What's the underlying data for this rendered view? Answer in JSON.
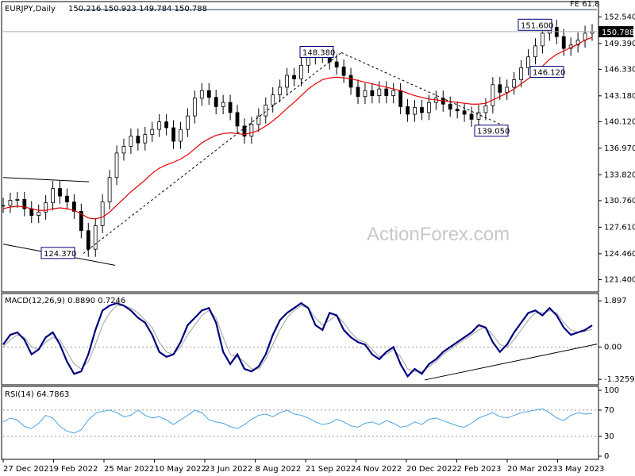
{
  "chart_data": [
    {
      "type": "candlestick",
      "panel": "price",
      "title": "EURJPY,Daily",
      "ohlc_readout": "150.216 150.923 149.784 150.788",
      "yticks": [
        "152.540",
        "149.390",
        "146.330",
        "143.180",
        "140.120",
        "136.970",
        "133.820",
        "130.760",
        "127.610",
        "124.460",
        "121.400"
      ],
      "ylim": [
        120.5,
        153.6
      ],
      "xticks": [
        "27 Dec 2021",
        "9 Feb 2022",
        "25 Mar 2022",
        "10 May 2022",
        "23 Jun 2022",
        "8 Aug 2022",
        "21 Sep 2022",
        "4 Nov 2022",
        "20 Dec 2022",
        "2 Feb 2023",
        "20 Mar 2023",
        "3 May 2023"
      ],
      "last_price": "150.788",
      "fib_label": "FE 61.8",
      "fib_level": 153.4,
      "annotations": [
        {
          "text": "124.370",
          "value": 124.37
        },
        {
          "text": "148.380",
          "value": 148.38
        },
        {
          "text": "139.050",
          "value": 139.05
        },
        {
          "text": "146.120",
          "value": 146.12
        },
        {
          "text": "151.600",
          "value": 151.6
        }
      ],
      "series": [
        {
          "role": "price",
          "values": [
            130.2,
            130.8,
            130.9,
            129.8,
            129.0,
            129.4,
            130.5,
            132.2,
            131.3,
            130.6,
            129.5,
            127.2,
            125.0,
            127.8,
            130.6,
            133.5,
            136.4,
            137.2,
            138.4,
            137.6,
            138.6,
            139.2,
            140.1,
            139.4,
            137.8,
            139.2,
            140.8,
            142.9,
            143.8,
            143.0,
            141.9,
            142.4,
            141.2,
            139.6,
            138.4,
            139.8,
            140.8,
            142.1,
            143.3,
            144.2,
            145.6,
            145.2,
            146.8,
            147.8,
            148.1,
            148.0,
            147.2,
            146.6,
            145.6,
            144.2,
            143.1,
            143.8,
            143.2,
            144.0,
            143.2,
            143.8,
            141.9,
            141.0,
            141.8,
            141.2,
            142.4,
            142.9,
            142.2,
            141.6,
            141.4,
            141.0,
            140.4,
            141.2,
            142.0,
            144.5,
            143.6,
            144.2,
            145.1,
            146.5,
            147.8,
            149.1,
            150.6,
            151.3,
            150.2,
            148.8,
            149.2,
            149.8,
            150.6,
            150.8
          ]
        },
        {
          "role": "sma",
          "values": [
            129.8,
            130.0,
            130.1,
            130.0,
            129.8,
            129.6,
            129.6,
            129.8,
            129.9,
            129.8,
            129.6,
            129.2,
            128.7,
            128.6,
            128.8,
            129.4,
            130.2,
            131.0,
            131.8,
            132.5,
            133.2,
            134.0,
            134.6,
            135.0,
            135.3,
            135.7,
            136.2,
            136.9,
            137.6,
            138.1,
            138.5,
            138.7,
            138.8,
            138.7,
            138.6,
            138.8,
            139.1,
            139.6,
            140.2,
            140.9,
            141.7,
            142.4,
            143.2,
            144.0,
            144.6,
            145.1,
            145.3,
            145.4,
            145.3,
            145.2,
            145.0,
            144.8,
            144.6,
            144.4,
            144.2,
            144.0,
            143.8,
            143.5,
            143.2,
            143.0,
            142.8,
            142.7,
            142.6,
            142.5,
            142.4,
            142.3,
            142.2,
            142.2,
            142.3,
            142.7,
            143.1,
            143.5,
            144.0,
            144.6,
            145.2,
            145.9,
            146.7,
            147.5,
            148.1,
            148.5,
            148.9,
            149.3,
            149.8,
            150.1
          ]
        }
      ]
    },
    {
      "type": "line",
      "panel": "macd",
      "title": "MACD(12,26,9) 0.8890 0.7246",
      "yticks": [
        "1.897",
        "0.00",
        "-1.3259"
      ],
      "ylim": [
        -1.45,
        2.0
      ],
      "current": "0.889",
      "series": [
        {
          "role": "macd",
          "values": [
            0.1,
            0.5,
            0.6,
            0.3,
            -0.3,
            -0.1,
            0.4,
            0.6,
            0.1,
            -0.6,
            -1.1,
            -1.0,
            -0.3,
            0.7,
            1.5,
            1.7,
            1.8,
            1.7,
            1.5,
            1.2,
            1.0,
            0.5,
            -0.2,
            -0.4,
            -0.3,
            0.2,
            0.9,
            1.2,
            1.5,
            1.6,
            1.0,
            -0.2,
            -0.7,
            -0.3,
            -0.9,
            -1.0,
            -0.8,
            -0.3,
            0.5,
            1.1,
            1.4,
            1.6,
            1.8,
            1.6,
            0.9,
            0.7,
            1.4,
            1.3,
            0.7,
            0.4,
            0.2,
            0.1,
            -0.3,
            -0.5,
            -0.2,
            0.0,
            -0.7,
            -1.2,
            -0.9,
            -1.1,
            -0.7,
            -0.5,
            -0.2,
            0.0,
            0.2,
            0.4,
            0.6,
            0.9,
            0.8,
            0.2,
            -0.2,
            0.1,
            0.6,
            1.0,
            1.4,
            1.5,
            1.3,
            1.6,
            1.3,
            0.8,
            0.5,
            0.6,
            0.7,
            0.89
          ]
        },
        {
          "role": "signal",
          "values": [
            0.0,
            0.3,
            0.5,
            0.4,
            0.0,
            -0.1,
            0.2,
            0.4,
            0.3,
            -0.2,
            -0.7,
            -0.9,
            -0.6,
            0.1,
            0.9,
            1.4,
            1.7,
            1.7,
            1.6,
            1.4,
            1.1,
            0.8,
            0.2,
            -0.2,
            -0.3,
            0.0,
            0.5,
            0.9,
            1.3,
            1.5,
            1.2,
            0.4,
            -0.3,
            -0.4,
            -0.6,
            -0.9,
            -0.9,
            -0.5,
            0.1,
            0.7,
            1.2,
            1.5,
            1.7,
            1.6,
            1.2,
            0.9,
            1.1,
            1.3,
            1.0,
            0.6,
            0.3,
            0.2,
            -0.1,
            -0.4,
            -0.3,
            -0.1,
            -0.4,
            -0.9,
            -1.0,
            -1.0,
            -0.8,
            -0.6,
            -0.3,
            -0.1,
            0.1,
            0.3,
            0.5,
            0.7,
            0.8,
            0.5,
            0.1,
            0.0,
            0.3,
            0.7,
            1.1,
            1.4,
            1.4,
            1.5,
            1.4,
            1.0,
            0.7,
            0.6,
            0.65,
            0.7246
          ]
        }
      ]
    },
    {
      "type": "line",
      "panel": "rsi",
      "title": "RSI(14) 64.7863",
      "yticks": [
        "100",
        "70",
        "30",
        "0"
      ],
      "ylim": [
        0,
        100
      ],
      "series": [
        {
          "role": "rsi",
          "values": [
            52,
            58,
            55,
            45,
            42,
            50,
            62,
            58,
            45,
            38,
            35,
            40,
            55,
            65,
            68,
            70,
            66,
            60,
            62,
            70,
            62,
            58,
            60,
            55,
            48,
            55,
            62,
            70,
            66,
            55,
            52,
            50,
            45,
            42,
            48,
            56,
            62,
            64,
            60,
            66,
            70,
            64,
            62,
            58,
            52,
            48,
            50,
            56,
            52,
            46,
            44,
            50,
            52,
            48,
            54,
            50,
            44,
            46,
            52,
            48,
            56,
            58,
            54,
            50,
            46,
            44,
            50,
            58,
            62,
            66,
            60,
            58,
            62,
            66,
            68,
            70,
            72,
            66,
            58,
            54,
            62,
            66,
            64,
            64.8
          ]
        }
      ]
    }
  ],
  "watermark": "ActionForex.com",
  "colors": {
    "price": "#000000",
    "sma": "#e60000",
    "macd": "#00007f",
    "signal": "#a0a0a0",
    "rsi": "#4aa3df",
    "line": "#000000",
    "label_border": "#00007f"
  }
}
